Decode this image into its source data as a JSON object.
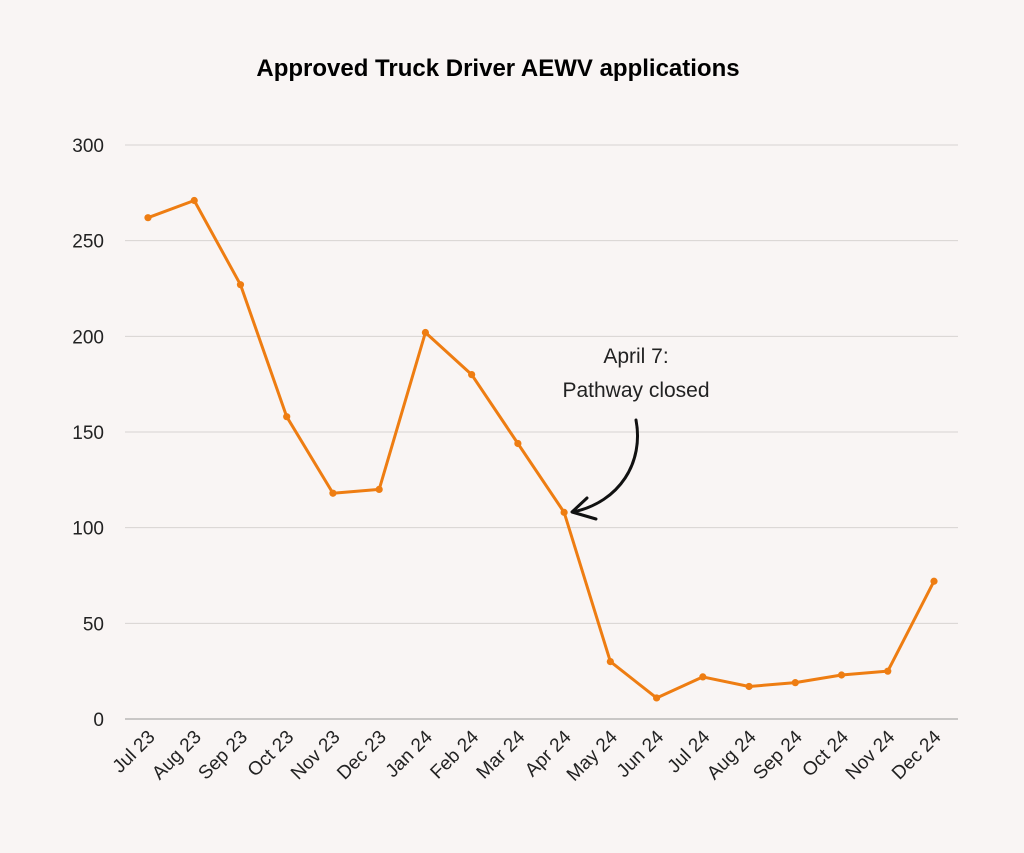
{
  "chart_data": {
    "type": "line",
    "title": "Approved Truck Driver AEWV applications",
    "xlabel": "",
    "ylabel": "",
    "ylim": [
      0,
      300
    ],
    "yticks": [
      0,
      50,
      100,
      150,
      200,
      250,
      300
    ],
    "grid": true,
    "categories": [
      "Jul 23",
      "Aug 23",
      "Sep 23",
      "Oct 23",
      "Nov 23",
      "Dec 23",
      "Jan 24",
      "Feb 24",
      "Mar 24",
      "Apr 24",
      "May 24",
      "Jun 24",
      "Jul 24",
      "Aug 24",
      "Sep 24",
      "Oct 24",
      "Nov 24",
      "Dec 24"
    ],
    "series": [
      {
        "values": [
          262,
          271,
          227,
          158,
          118,
          120,
          202,
          180,
          144,
          108,
          30,
          11,
          22,
          17,
          19,
          23,
          25,
          72
        ],
        "color": "#ee7d12"
      }
    ],
    "annotation": {
      "lines": [
        "April 7:",
        "Pathway closed"
      ],
      "target_category": "Apr 24"
    }
  }
}
